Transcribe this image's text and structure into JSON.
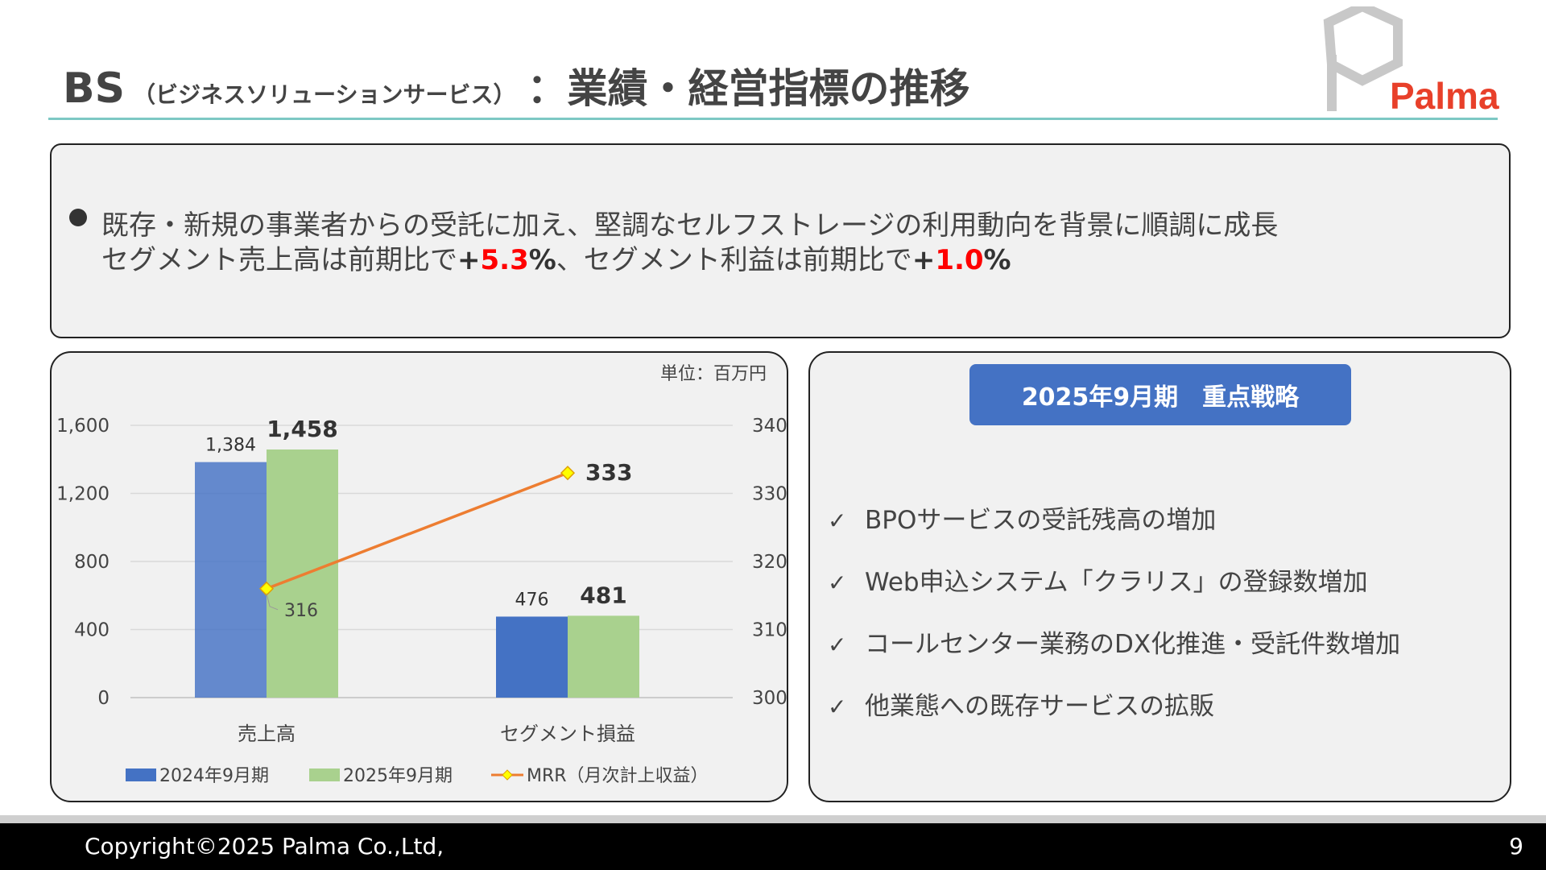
{
  "header": {
    "title_main": "BS",
    "title_sub": "（ビジネスソリューションサービス）",
    "title_rest": "：業績・経営指標の推移",
    "logo_text": "Palma"
  },
  "summary": {
    "line1": "既存・新規の事業者からの受託に加え、堅調なセルフストレージの利用動向を背景に順調に成長",
    "line2_a": "セグメント売上高は前期比で",
    "line2_sign1": "+",
    "line2_val1": "5.3",
    "line2_pct1": "%",
    "line2_b": "、セグメント利益は前期比で",
    "line2_sign2": "+",
    "line2_val2": "1.0",
    "line2_pct2": "%"
  },
  "chart": {
    "unit_label": "単位：百万円"
  },
  "chart_data": {
    "type": "bar",
    "categories": [
      "売上高",
      "セグメント損益"
    ],
    "series": [
      {
        "name": "2024年9月期",
        "values": [
          1384,
          476
        ],
        "color": "#4472c4"
      },
      {
        "name": "2025年9月期",
        "values": [
          1458,
          481
        ],
        "color": "#a9d18e"
      }
    ],
    "line_series": {
      "name": "MRR（月次計上収益）",
      "values": [
        316,
        333
      ],
      "color": "#ed7d31",
      "marker_color": "#ffff00"
    },
    "ylim": [
      0,
      1600
    ],
    "yticks": [
      "0",
      "400",
      "800",
      "1,200",
      "1,600"
    ],
    "y2lim": [
      300,
      340
    ],
    "y2ticks": [
      "300",
      "310",
      "320",
      "330",
      "340"
    ],
    "bar_labels": [
      [
        "1,384",
        "476"
      ],
      [
        "1,458",
        "481"
      ]
    ],
    "line_labels": [
      "316",
      "333"
    ],
    "grid": true,
    "legend_position": "bottom"
  },
  "strategy": {
    "header": "2025年9月期　重点戦略",
    "check": "✓",
    "items": [
      "BPOサービスの受託残高の増加",
      "Web申込システム「クラリス」の登録数増加",
      "コールセンター業務のDX化推進・受託件数増加",
      "他業態への既存サービスの拡販"
    ]
  },
  "footer": {
    "copyright": "Copyright©2025 Palma Co.,Ltd,",
    "page": "9"
  }
}
